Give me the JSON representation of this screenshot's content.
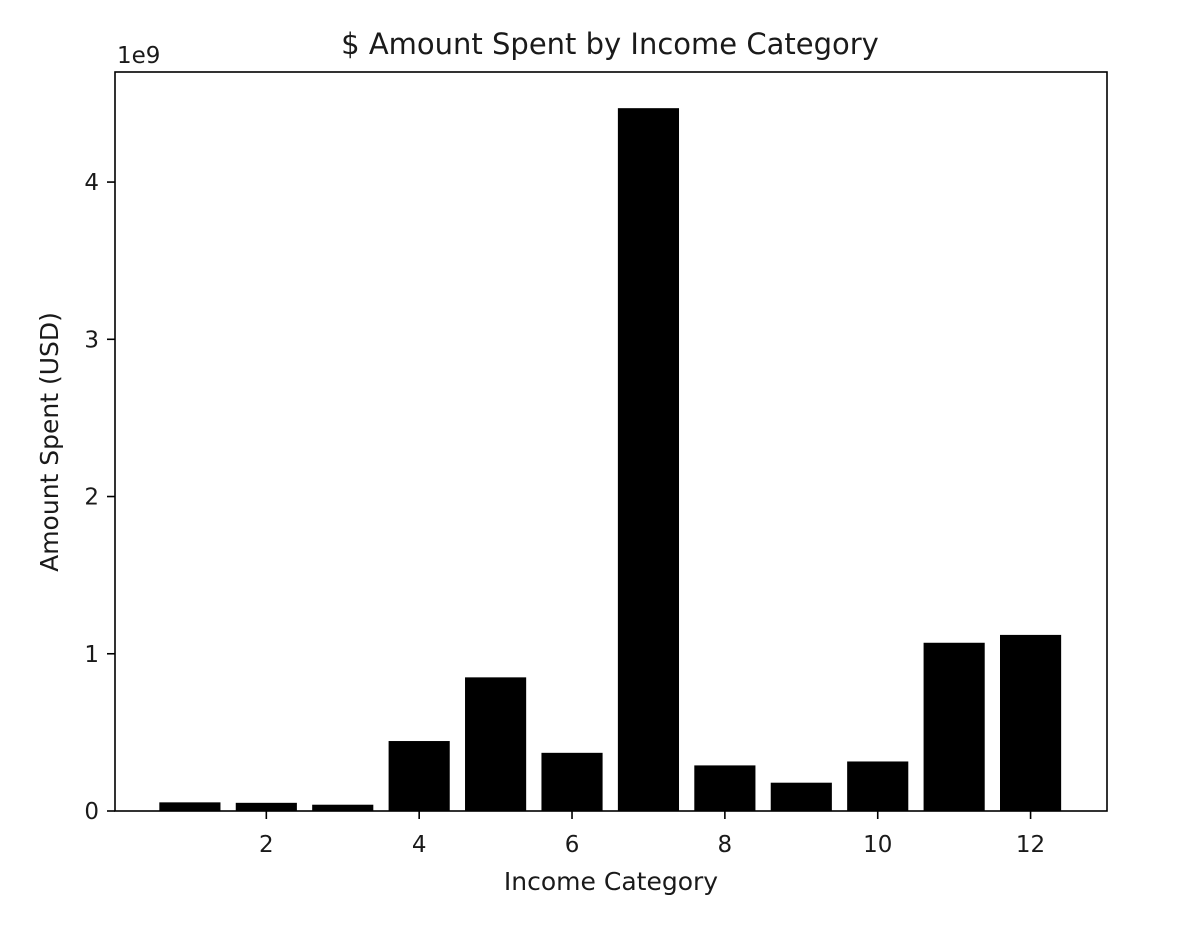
{
  "chart_data": {
    "type": "bar",
    "title": "$ Amount Spent by Income Category",
    "xlabel": "Income Category",
    "ylabel": "Amount Spent (USD)",
    "y_offset_label": "1e9",
    "x": [
      1,
      2,
      3,
      4,
      5,
      6,
      7,
      8,
      9,
      10,
      11,
      12
    ],
    "values": [
      55000000,
      52000000,
      40000000,
      445000000,
      850000000,
      370000000,
      4470000000,
      290000000,
      180000000,
      315000000,
      1070000000,
      1120000000
    ],
    "xlim": [
      0.02,
      13.0
    ],
    "ylim": [
      0,
      4700000000.0
    ],
    "xticks": [
      2,
      4,
      6,
      8,
      10,
      12
    ],
    "xtick_labels": [
      "2",
      "4",
      "6",
      "8",
      "10",
      "12"
    ],
    "yticks": [
      0,
      1000000000,
      2000000000,
      3000000000,
      4000000000
    ],
    "ytick_labels": [
      "0",
      "1",
      "2",
      "3",
      "4"
    ],
    "bar_color": "#000000",
    "grid": false,
    "legend": "none"
  }
}
